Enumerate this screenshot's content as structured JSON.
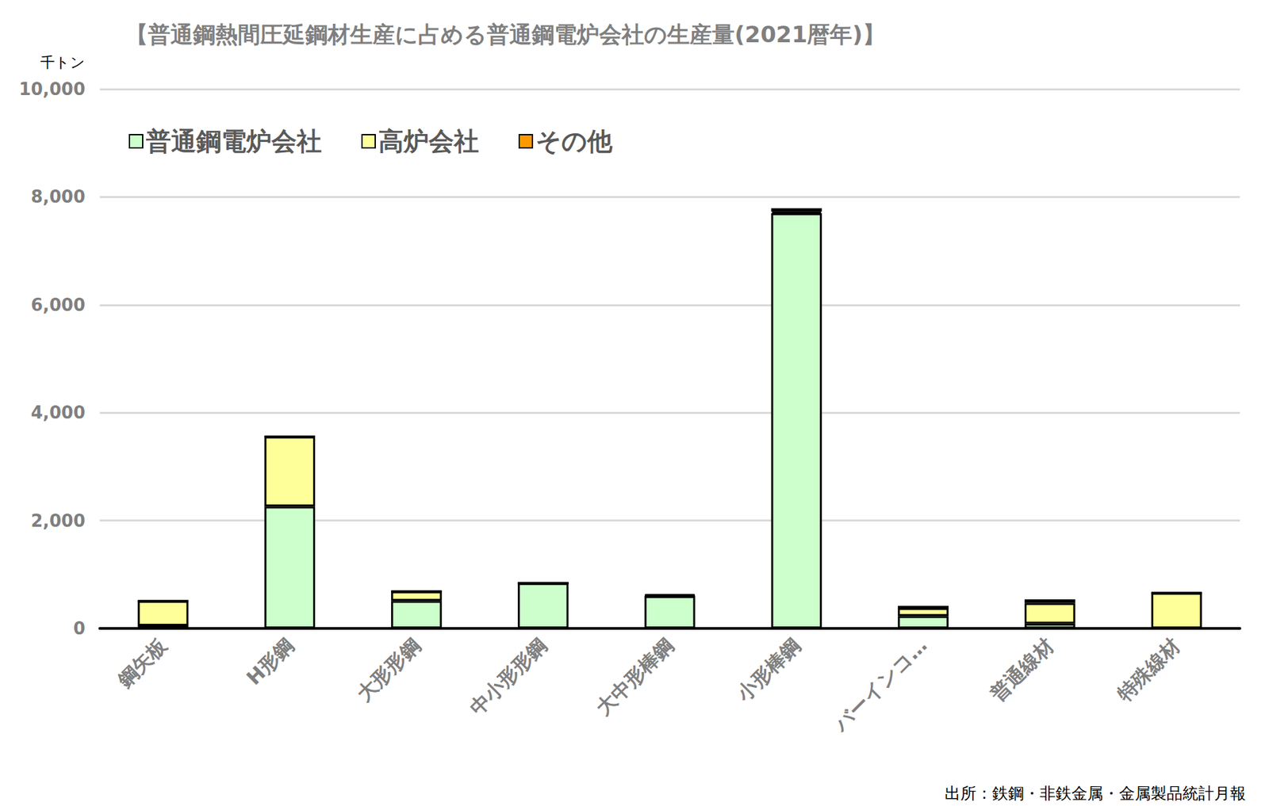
{
  "chart_data": {
    "type": "bar",
    "title": "【普通鋼熱間圧延鋼材生産に占める普通鋼電炉会社の生産量(2021暦年)】",
    "ylabel": "千トン",
    "source": "出所：鉄鋼・非鉄金属・金属製品統計月報",
    "categories": [
      "鋼矢板",
      "H形鋼",
      "大形形鋼",
      "中小形形鋼",
      "大中形棒鋼",
      "小形棒鋼",
      "バーインコ…",
      "普通線材",
      "特殊線材"
    ],
    "series": [
      {
        "name": "普通鋼電炉会社",
        "color": "#ccffcc",
        "values": [
          50,
          2260,
          510,
          840,
          600,
          7700,
          230,
          90,
          0
        ]
      },
      {
        "name": "高炉会社",
        "color": "#ffff99",
        "values": [
          460,
          1300,
          180,
          0,
          10,
          30,
          150,
          380,
          660
        ]
      },
      {
        "name": "その他",
        "color": "#ff9900",
        "values": [
          0,
          0,
          0,
          0,
          20,
          60,
          40,
          70,
          0
        ]
      }
    ],
    "stacked": true,
    "ylim": [
      0,
      10000
    ],
    "yticks": [
      0,
      {
        "value": 2000,
        "label": "2,000"
      },
      {
        "value": 4000,
        "label": "4,000"
      },
      {
        "value": 6000,
        "label": "6,000"
      },
      {
        "value": 8000,
        "label": "8,000"
      },
      {
        "value": 10000,
        "label": "10,000"
      }
    ],
    "grid": true,
    "legend": "top-left"
  }
}
